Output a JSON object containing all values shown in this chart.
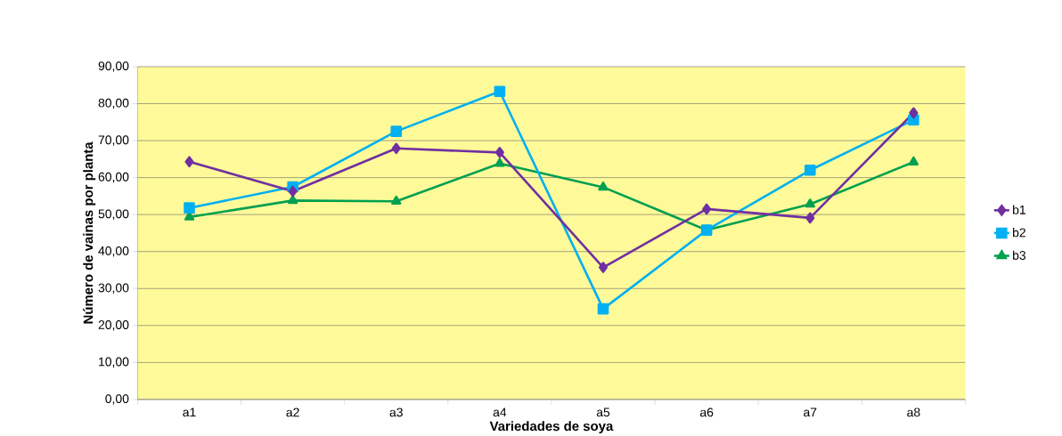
{
  "chart_data": {
    "type": "line",
    "xlabel": "Variedades de soya",
    "ylabel": "Número de vainas por planta",
    "categories": [
      "a1",
      "a2",
      "a3",
      "a4",
      "a5",
      "a6",
      "a7",
      "a8"
    ],
    "series": [
      {
        "name": "b1",
        "color": "#7030a0",
        "marker": "diamond",
        "values": [
          64.3,
          56.3,
          67.9,
          66.8,
          35.7,
          51.5,
          49.1,
          77.5
        ]
      },
      {
        "name": "b2",
        "color": "#00b0f0",
        "marker": "square",
        "values": [
          51.8,
          57.5,
          72.5,
          83.3,
          24.5,
          45.8,
          62.0,
          75.6
        ]
      },
      {
        "name": "b3",
        "color": "#00a050",
        "marker": "triangle",
        "values": [
          49.3,
          53.8,
          53.6,
          63.8,
          57.4,
          45.8,
          52.8,
          64.2
        ]
      }
    ],
    "ylim": [
      0,
      90
    ],
    "yticks": [
      {
        "value": 0,
        "label": "0,00"
      },
      {
        "value": 10,
        "label": "10,00"
      },
      {
        "value": 20,
        "label": "20,00"
      },
      {
        "value": 30,
        "label": "30,00"
      },
      {
        "value": 40,
        "label": "40,00"
      },
      {
        "value": 50,
        "label": "50,00"
      },
      {
        "value": 60,
        "label": "60,00"
      },
      {
        "value": 70,
        "label": "70,00"
      },
      {
        "value": 80,
        "label": "80,00"
      },
      {
        "value": 90,
        "label": "90,00"
      }
    ],
    "grid": "y",
    "legend": "right",
    "line_style": "solid"
  }
}
